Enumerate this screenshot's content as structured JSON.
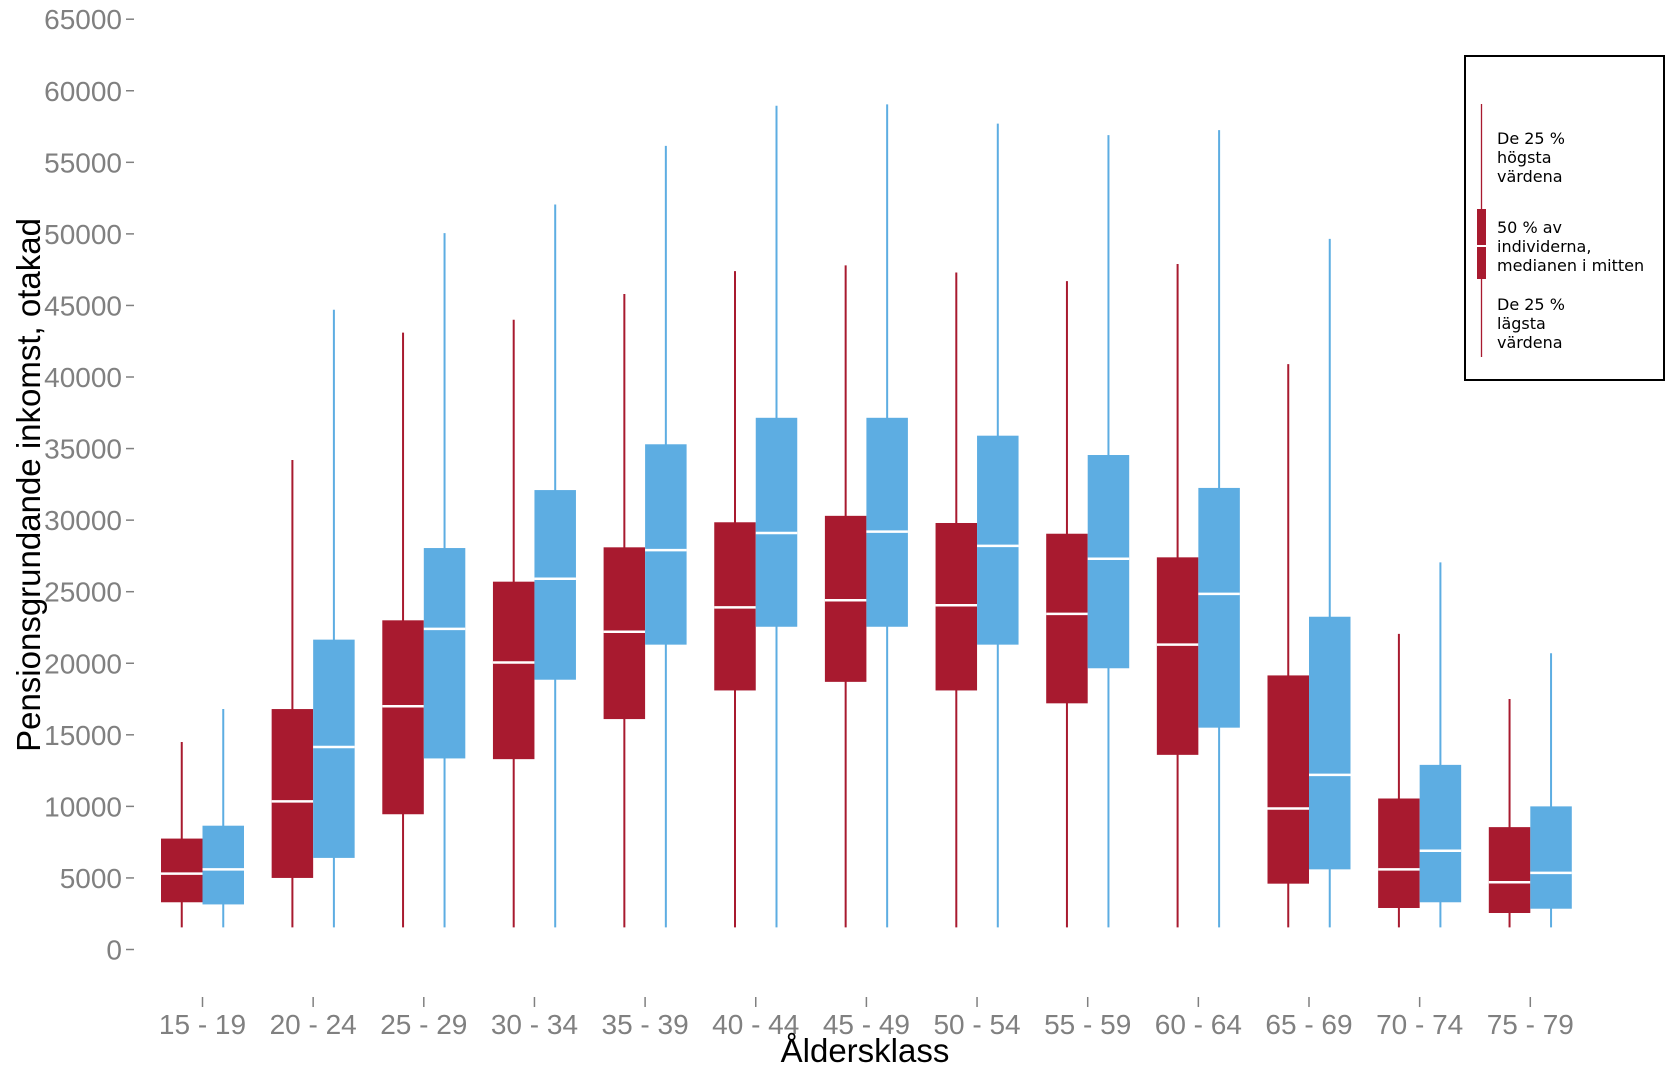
{
  "chart_data": {
    "type": "box",
    "categories": [
      "15 - 19",
      "20 - 24",
      "25 - 29",
      "30 - 34",
      "35 - 39",
      "40 - 44",
      "45 - 49",
      "50 - 54",
      "55 - 59",
      "60 - 64",
      "65 - 69",
      "70 - 74",
      "75 - 79"
    ],
    "xlabel": "Åldersklass",
    "ylabel": "Pensionsgrundande inkomst, otakad",
    "ylim": [
      0,
      65000
    ],
    "yticks": [
      0,
      5000,
      10000,
      15000,
      20000,
      25000,
      30000,
      35000,
      40000,
      45000,
      50000,
      55000,
      60000,
      65000
    ],
    "grid": false,
    "axis_color": "#808080",
    "median_color": "#FFFFFF",
    "series": [
      {
        "color": "#A81A2F",
        "whisker_high": [
          14500,
          34200,
          43100,
          44000,
          45800,
          47400,
          47800,
          47300,
          46700,
          47900,
          40900,
          22050,
          17500
        ],
        "q3": [
          7750,
          16800,
          23000,
          25700,
          28100,
          29850,
          30300,
          29800,
          29050,
          27400,
          19150,
          10550,
          8550
        ],
        "median": [
          5300,
          10350,
          17000,
          20050,
          22200,
          23900,
          24400,
          24050,
          23450,
          21300,
          9850,
          5600,
          4700
        ],
        "q1": [
          3300,
          5000,
          9450,
          13300,
          16100,
          18100,
          18700,
          18100,
          17200,
          13600,
          4600,
          2900,
          2550
        ],
        "whisker_low": [
          1550,
          1550,
          1550,
          1550,
          1550,
          1550,
          1550,
          1550,
          1550,
          1550,
          1550,
          1550,
          1550
        ]
      },
      {
        "color": "#5DADE2",
        "whisker_high": [
          16800,
          44700,
          50050,
          52050,
          56150,
          58950,
          59050,
          57700,
          56900,
          57250,
          49650,
          27050,
          20700
        ],
        "q3": [
          8650,
          21650,
          28050,
          32100,
          35300,
          37150,
          37150,
          35900,
          34550,
          32250,
          23250,
          12900,
          10000
        ],
        "median": [
          5600,
          14150,
          22400,
          25900,
          27900,
          29100,
          29200,
          28200,
          27300,
          24850,
          12200,
          6900,
          5350
        ],
        "q1": [
          3150,
          6400,
          13350,
          18850,
          21300,
          22550,
          22550,
          21300,
          19650,
          15500,
          5600,
          3300,
          2850
        ],
        "whisker_low": [
          1550,
          1550,
          1550,
          1550,
          1550,
          1550,
          1550,
          1550,
          1550,
          1550,
          1550,
          1550,
          1550
        ]
      }
    ],
    "legend": {
      "position": "top-right",
      "upper": [
        "De 25 %",
        "högsta",
        "värdena"
      ],
      "middle": [
        "50 % av",
        "individerna,",
        "medianen i mitten"
      ],
      "lower": [
        "De 25 %",
        "lägsta",
        "värdena"
      ]
    }
  }
}
